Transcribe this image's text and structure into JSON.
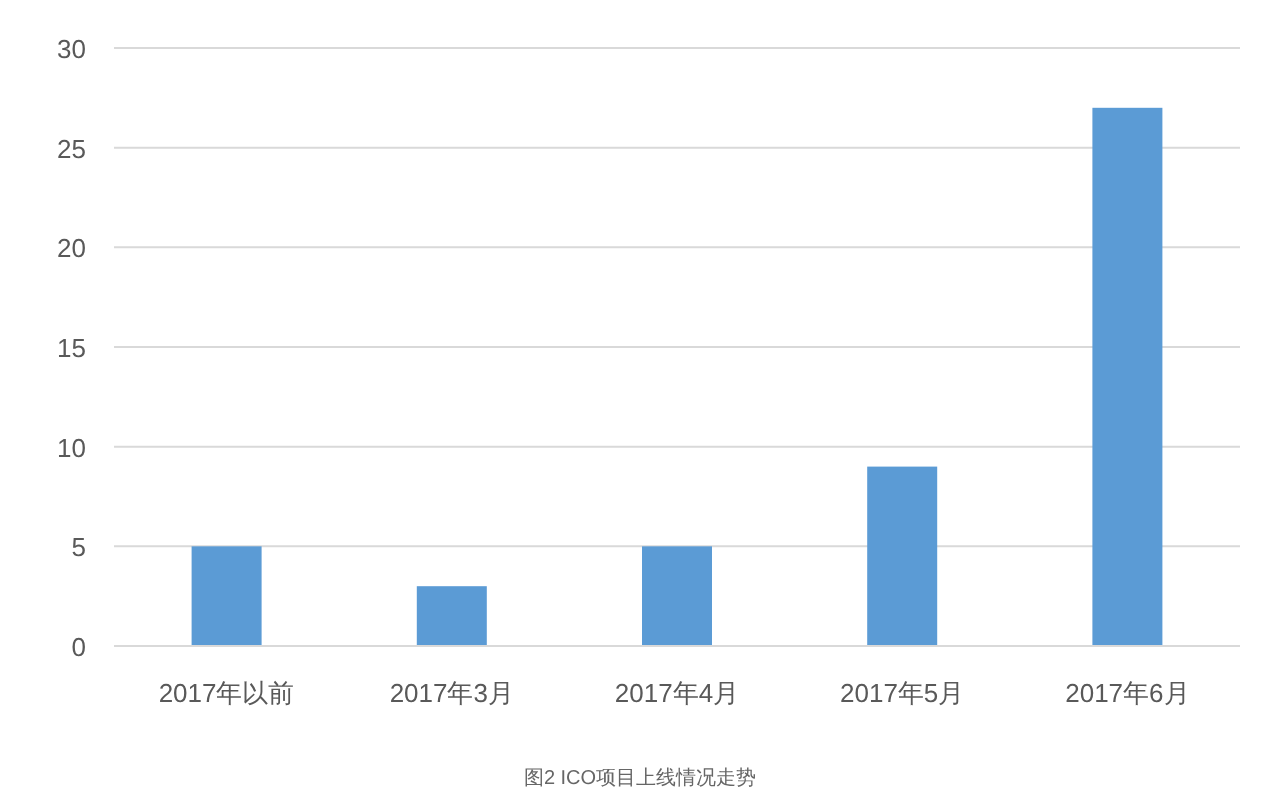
{
  "chart_data": {
    "type": "bar",
    "categories": [
      "2017年以前",
      "2017年3月",
      "2017年4月",
      "2017年5月",
      "2017年6月"
    ],
    "values": [
      5,
      3,
      5,
      9,
      27
    ],
    "color": "#5b9bd5",
    "ylim": [
      0,
      30
    ],
    "yticks": [
      0,
      5,
      10,
      15,
      20,
      25,
      30
    ],
    "grid": "y",
    "annotations": [
      "图2 ICO项目上线情况走势"
    ]
  }
}
